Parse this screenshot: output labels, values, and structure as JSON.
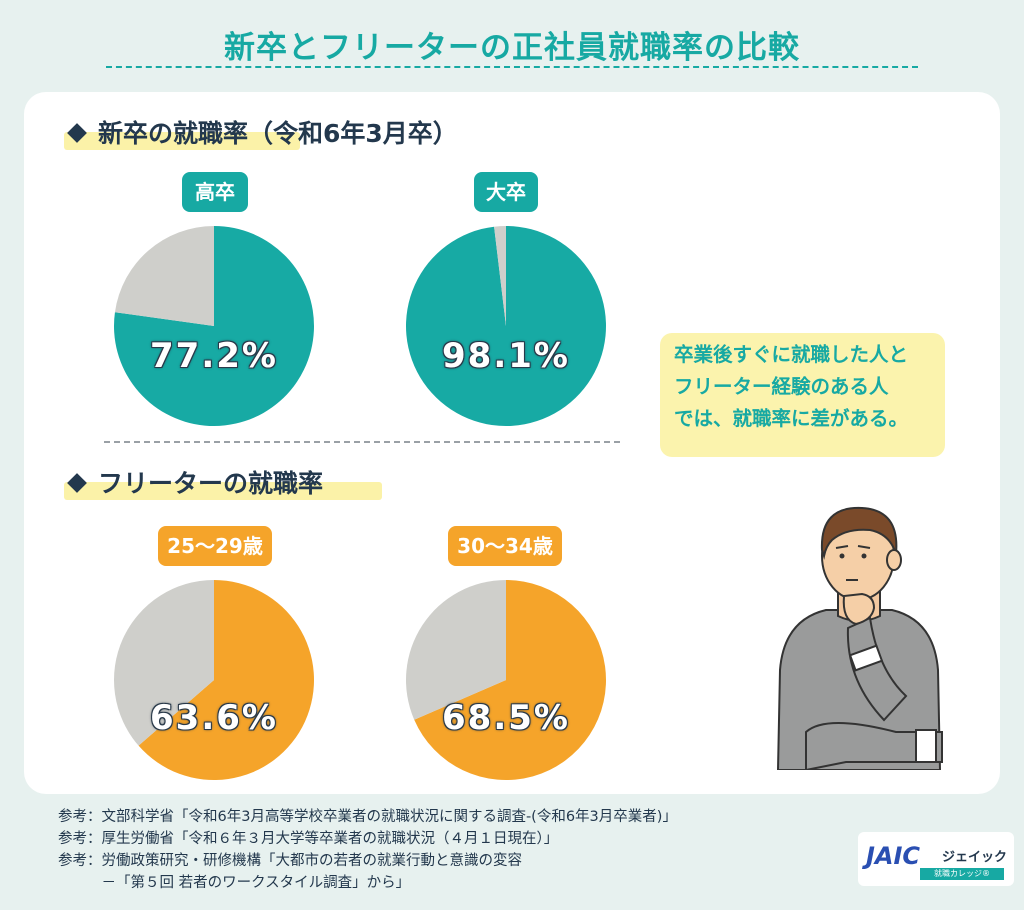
{
  "title": "新卒とフリーターの正社員就職率の比較",
  "sections": {
    "new_grad_heading": "新卒の就職率（令和6年3月卒）",
    "freeter_heading": "フリーターの就職率"
  },
  "chart_data": [
    {
      "type": "pie",
      "title": "高卒",
      "slices": [
        {
          "label": "就職率",
          "value": 77.2
        },
        {
          "label": "",
          "value": 22.8
        }
      ],
      "display": "77.2%",
      "colors": [
        "#17aaa4",
        "#cfcfcb"
      ]
    },
    {
      "type": "pie",
      "title": "大卒",
      "slices": [
        {
          "label": "就職率",
          "value": 98.1
        },
        {
          "label": "",
          "value": 1.9
        }
      ],
      "display": "98.1%",
      "colors": [
        "#17aaa4",
        "#cfcfcb"
      ]
    },
    {
      "type": "pie",
      "title": "25〜29歳",
      "slices": [
        {
          "label": "就職率",
          "value": 63.6
        },
        {
          "label": "",
          "value": 36.4
        }
      ],
      "display": "63.6%",
      "colors": [
        "#f5a42a",
        "#cfcfcb"
      ]
    },
    {
      "type": "pie",
      "title": "30〜34歳",
      "slices": [
        {
          "label": "就職率",
          "value": 68.5
        },
        {
          "label": "",
          "value": 31.5
        }
      ],
      "display": "68.5%",
      "colors": [
        "#f5a42a",
        "#cfcfcb"
      ]
    }
  ],
  "note": {
    "line1": "卒業後すぐに就職した人と",
    "line2": "フリーター経験のある人",
    "line3": "では、就職率に差がある。"
  },
  "references": [
    "参考：文部科学省「令和6年3月高等学校卒業者の就職状況に関する調査-(令和6年3月卒業者)」",
    "参考：厚生労働省「令和６年３月大学等卒業者の就職状況（４月１日現在）」",
    "参考：労働政策研究・研修機構「大都市の若者の就業行動と意識の変容",
    "　　　－「第５回 若者のワークスタイル調査」から」"
  ],
  "logo": {
    "name": "JAIC",
    "kana": "ジェイック",
    "tagline": "就職カレッジ®"
  }
}
